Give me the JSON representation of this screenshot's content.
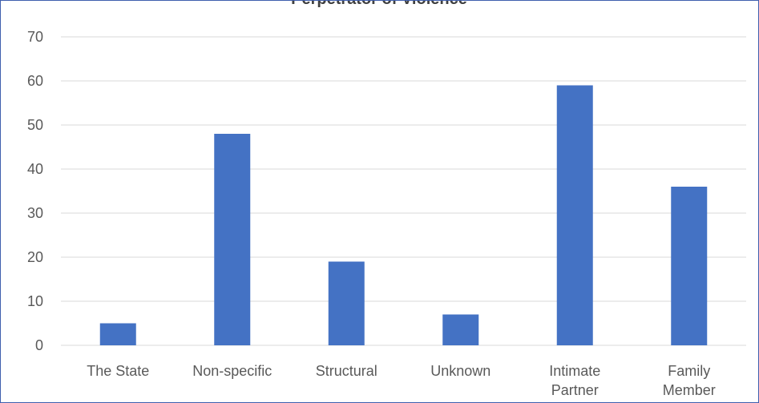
{
  "chart_data": {
    "type": "bar",
    "title": "Perpetrator of Violence",
    "categories": [
      [
        "The State"
      ],
      [
        "Non-specific"
      ],
      [
        "Structural"
      ],
      [
        "Unknown"
      ],
      [
        "Intimate",
        "Partner"
      ],
      [
        "Family",
        "Member"
      ]
    ],
    "values": [
      5,
      48,
      19,
      7,
      59,
      36
    ],
    "ylim": [
      0,
      70
    ],
    "yticks": [
      0,
      10,
      20,
      30,
      40,
      50,
      60,
      70
    ],
    "grid": true,
    "legend": "none",
    "bar_color": "#4472c4",
    "grid_color": "#d9d9d9"
  }
}
